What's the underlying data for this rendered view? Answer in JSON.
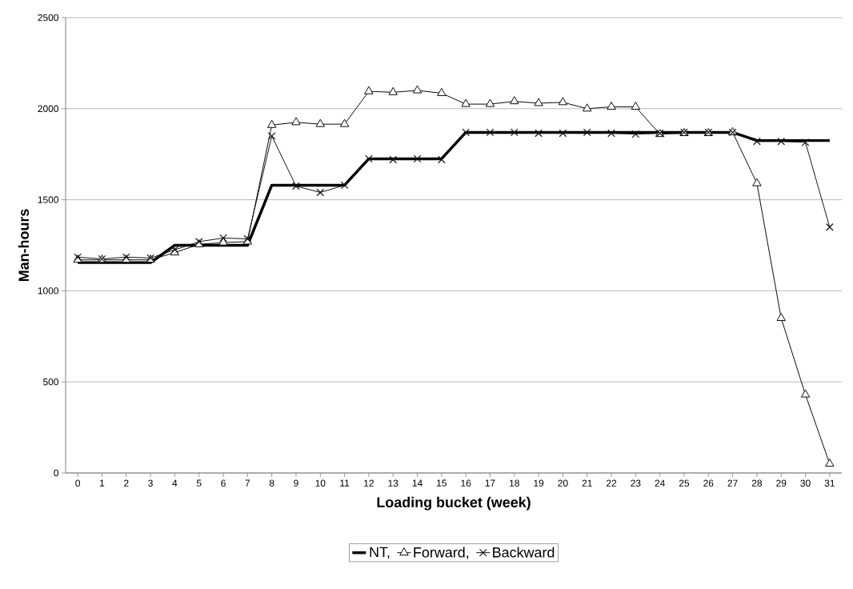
{
  "chart_data": {
    "type": "line",
    "xlabel": "Loading bucket (week)",
    "ylabel": "Man-hours",
    "categories": [
      "0",
      "1",
      "2",
      "3",
      "4",
      "5",
      "6",
      "7",
      "8",
      "9",
      "10",
      "11",
      "12",
      "13",
      "14",
      "15",
      "16",
      "17",
      "18",
      "19",
      "20",
      "21",
      "22",
      "23",
      "24",
      "25",
      "26",
      "27",
      "28",
      "29",
      "30",
      "31"
    ],
    "series": [
      {
        "name": "NT,",
        "color": "#000000",
        "marker": "none",
        "values": [
          1155,
          1155,
          1155,
          1155,
          1250,
          1250,
          1250,
          1250,
          1580,
          1580,
          1580,
          1580,
          1725,
          1725,
          1725,
          1725,
          1870,
          1870,
          1870,
          1870,
          1870,
          1870,
          1870,
          1870,
          1870,
          1870,
          1870,
          1870,
          1825,
          1825,
          1825,
          1825
        ]
      },
      {
        "name": "Forward,",
        "color": "#0a0a0a",
        "marker": "triangle",
        "values": [
          1170,
          1170,
          1170,
          1170,
          1210,
          1255,
          1265,
          1270,
          1910,
          1925,
          1915,
          1915,
          2095,
          2090,
          2100,
          2085,
          2025,
          2025,
          2040,
          2030,
          2035,
          2000,
          2010,
          2010,
          1860,
          1865,
          1865,
          1870,
          1590,
          850,
          430,
          50
        ]
      },
      {
        "name": "Backward",
        "color": "#141414",
        "marker": "cross",
        "values": [
          1185,
          1175,
          1185,
          1180,
          1225,
          1270,
          1290,
          1285,
          1850,
          1575,
          1540,
          1580,
          1725,
          1720,
          1725,
          1720,
          1870,
          1870,
          1870,
          1865,
          1865,
          1870,
          1865,
          1860,
          1865,
          1870,
          1870,
          1870,
          1820,
          1820,
          1815,
          1350
        ]
      }
    ],
    "ylim": [
      0,
      2500
    ],
    "yticks": [
      0,
      500,
      1000,
      1500,
      2000,
      2500
    ],
    "grid": "y",
    "legend": "bottom"
  }
}
